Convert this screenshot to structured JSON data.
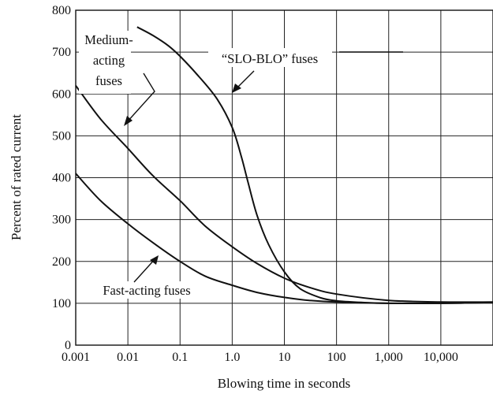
{
  "chart_data": {
    "type": "line",
    "xlabel": "Blowing time in seconds",
    "ylabel": "Percent of rated current",
    "x_scale": "log",
    "xlim": [
      0.001,
      100000
    ],
    "ylim": [
      0,
      800
    ],
    "grid": true,
    "x_ticks": [
      0.001,
      0.01,
      0.1,
      1,
      10,
      100,
      1000,
      10000
    ],
    "x_tick_labels": [
      "0.001",
      "0.01",
      "0.1",
      "1.0",
      "10",
      "100",
      "1,000",
      "10,000"
    ],
    "y_ticks": [
      0,
      100,
      200,
      300,
      400,
      500,
      600,
      700,
      800
    ],
    "y_tick_labels": [
      "0",
      "100",
      "200",
      "300",
      "400",
      "500",
      "600",
      "700",
      "800"
    ],
    "series": [
      {
        "name": "“SLO-BLO” fuses",
        "x": [
          0.015,
          0.03,
          0.06,
          0.1,
          0.2,
          0.5,
          1,
          1.5,
          2,
          3,
          5,
          10,
          20,
          50,
          100,
          300,
          1000,
          10000,
          100000
        ],
        "y": [
          760,
          740,
          715,
          690,
          650,
          590,
          520,
          450,
          390,
          310,
          240,
          175,
          135,
          113,
          106,
          102,
          100,
          100,
          102
        ]
      },
      {
        "name": "Medium-acting fuses",
        "x": [
          0.001,
          0.003,
          0.01,
          0.03,
          0.1,
          0.3,
          1,
          3,
          10,
          30,
          100,
          1000,
          10000,
          100000
        ],
        "y": [
          620,
          540,
          470,
          405,
          345,
          285,
          235,
          195,
          160,
          138,
          122,
          107,
          103,
          103
        ]
      },
      {
        "name": "Fast-acting fuses",
        "x": [
          0.001,
          0.003,
          0.01,
          0.03,
          0.1,
          0.3,
          1,
          3,
          10,
          30,
          100,
          1000,
          10000,
          100000
        ],
        "y": [
          410,
          345,
          290,
          245,
          200,
          165,
          143,
          126,
          114,
          107,
          103,
          100,
          100,
          102
        ]
      }
    ],
    "annotations": {
      "slo_blo_label": "“SLO-BLO” fuses",
      "medium_label_line1": "Medium-",
      "medium_label_line2": "acting",
      "medium_label_line3": "fuses",
      "fast_label": "Fast-acting fuses"
    }
  }
}
